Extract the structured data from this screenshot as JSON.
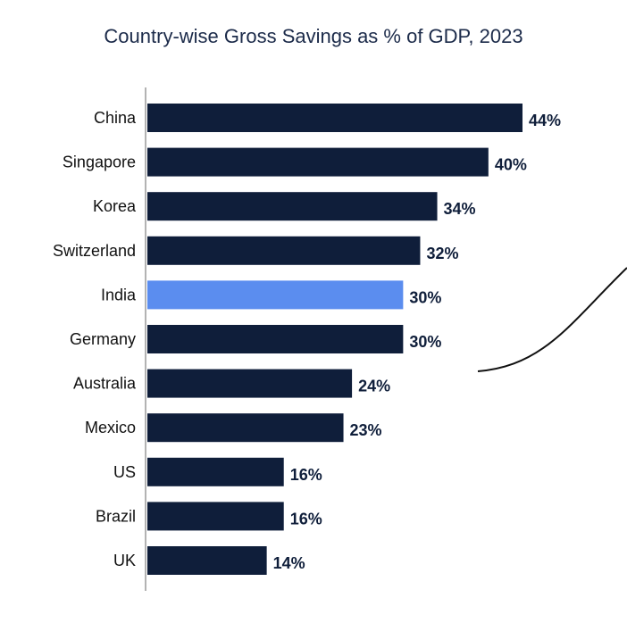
{
  "chart_data": {
    "type": "bar",
    "orientation": "horizontal",
    "title": "Country-wise Gross Savings as % of GDP, 2023",
    "xlabel": "",
    "ylabel": "",
    "categories": [
      "China",
      "Singapore",
      "Korea",
      "Switzerland",
      "India",
      "Germany",
      "Australia",
      "Mexico",
      "US",
      "Brazil",
      "UK"
    ],
    "values": [
      44,
      40,
      34,
      32,
      30,
      30,
      24,
      23,
      16,
      16,
      14
    ],
    "value_labels": [
      "44%",
      "40%",
      "34%",
      "32%",
      "30%",
      "30%",
      "24%",
      "23%",
      "16%",
      "16%",
      "14%"
    ],
    "highlight_category": "India",
    "xlim": [
      0,
      44
    ],
    "grid": false,
    "legend": "none",
    "colors": {
      "bar": "#0f1e3a",
      "highlight": "#5b8def",
      "axis": "#9a9a9a",
      "title": "#1c2b4a"
    }
  }
}
